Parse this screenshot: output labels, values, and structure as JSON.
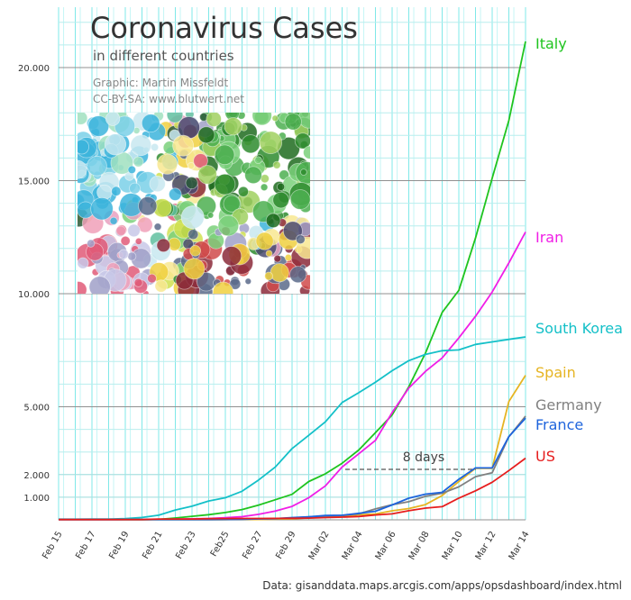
{
  "chart_data": {
    "type": "line",
    "title": "Coronavirus Cases",
    "subtitle": "in different countries",
    "credit_line1": "Graphic: Martin Missfeldt",
    "credit_line2": "CC-BY-SA: www.blutwert.net",
    "source": "Data: gisanddata.maps.arcgis.com/apps/opsdashboard/index.html",
    "annotation": "8 days",
    "x": [
      "2020-02-15",
      "2020-02-16",
      "2020-02-17",
      "2020-02-18",
      "2020-02-19",
      "2020-02-20",
      "2020-02-21",
      "2020-02-22",
      "2020-02-23",
      "2020-02-24",
      "2020-02-25",
      "2020-02-26",
      "2020-02-27",
      "2020-02-28",
      "2020-02-29",
      "2020-03-01",
      "2020-03-02",
      "2020-03-03",
      "2020-03-04",
      "2020-03-05",
      "2020-03-06",
      "2020-03-07",
      "2020-03-08",
      "2020-03-09",
      "2020-03-10",
      "2020-03-11",
      "2020-03-12",
      "2020-03-13",
      "2020-03-14"
    ],
    "x_tick_labels": [
      "Feb 15",
      "Feb 17",
      "Feb 19",
      "Feb 21",
      "Feb 23",
      "Feb25",
      "Feb 27",
      "Feb 29",
      "Mar 02",
      "Mar 04",
      "Mar 06",
      "Mar 08",
      "Mar 10",
      "Mar 12",
      "Mar 14"
    ],
    "y_tick_values": [
      1000,
      2000,
      5000,
      10000,
      15000,
      20000
    ],
    "y_tick_labels": [
      "1.000",
      "2.000",
      "5.000",
      "10.000",
      "15.000",
      "20.000"
    ],
    "ylim": [
      0,
      22000
    ],
    "grid": true,
    "series": [
      {
        "name": "Italy",
        "color": "#1fc41f",
        "values": [
          3,
          3,
          3,
          3,
          3,
          3,
          20,
          79,
          157,
          229,
          322,
          453,
          655,
          888,
          1128,
          1694,
          2036,
          2502,
          3089,
          3858,
          4636,
          5883,
          7375,
          9172,
          10149,
          12462,
          15113,
          17660,
          21157
        ]
      },
      {
        "name": "Iran",
        "color": "#f01ee6",
        "values": [
          0,
          0,
          0,
          0,
          2,
          5,
          18,
          28,
          43,
          61,
          95,
          139,
          245,
          388,
          593,
          978,
          1501,
          2336,
          2922,
          3513,
          4747,
          5823,
          6566,
          7161,
          8042,
          9000,
          10075,
          11364,
          12729
        ]
      },
      {
        "name": "South Korea",
        "color": "#14c0c8",
        "values": [
          28,
          29,
          30,
          31,
          51,
          104,
          204,
          433,
          602,
          833,
          977,
          1261,
          1766,
          2337,
          3150,
          3736,
          4335,
          5186,
          5621,
          6088,
          6593,
          7041,
          7314,
          7478,
          7513,
          7755,
          7869,
          7979,
          8086
        ]
      },
      {
        "name": "Spain",
        "color": "#e6b422",
        "values": [
          2,
          2,
          2,
          2,
          2,
          2,
          2,
          2,
          2,
          2,
          6,
          13,
          15,
          32,
          45,
          84,
          120,
          165,
          222,
          259,
          400,
          500,
          673,
          1073,
          1695,
          2277,
          2277,
          5232,
          6391
        ]
      },
      {
        "name": "Germany",
        "color": "#808080",
        "values": [
          16,
          16,
          16,
          16,
          16,
          16,
          16,
          16,
          16,
          16,
          17,
          27,
          46,
          48,
          79,
          130,
          159,
          196,
          262,
          482,
          670,
          799,
          1040,
          1176,
          1457,
          1908,
          2078,
          3675,
          4585
        ]
      },
      {
        "name": "France",
        "color": "#1e64dc",
        "values": [
          12,
          12,
          12,
          12,
          12,
          12,
          12,
          12,
          12,
          12,
          14,
          18,
          38,
          57,
          100,
          130,
          191,
          204,
          288,
          380,
          656,
          957,
          1134,
          1217,
          1794,
          2293,
          2293,
          3681,
          4499
        ]
      },
      {
        "name": "US",
        "color": "#e61e1e",
        "values": [
          15,
          15,
          15,
          15,
          15,
          15,
          35,
          35,
          35,
          53,
          57,
          60,
          60,
          62,
          68,
          74,
          98,
          118,
          149,
          217,
          262,
          402,
          518,
          583,
          959,
          1281,
          1663,
          2179,
          2726
        ]
      }
    ]
  },
  "illustration": {
    "name": "colorful-circles-artwork"
  }
}
